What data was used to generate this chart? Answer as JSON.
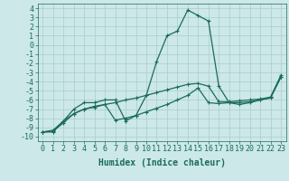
{
  "xlabel": "Humidex (Indice chaleur)",
  "background_color": "#cce8e8",
  "grid_color": "#aacccc",
  "line_color": "#1a6b5a",
  "xlim": [
    -0.5,
    23.5
  ],
  "ylim": [
    -10.5,
    4.5
  ],
  "xticks": [
    0,
    1,
    2,
    3,
    4,
    5,
    6,
    7,
    8,
    9,
    10,
    11,
    12,
    13,
    14,
    15,
    16,
    17,
    18,
    19,
    20,
    21,
    22,
    23
  ],
  "yticks": [
    4,
    3,
    2,
    1,
    0,
    -1,
    -2,
    -3,
    -4,
    -5,
    -6,
    -7,
    -8,
    -9,
    -10
  ],
  "line1_x": [
    0,
    1,
    2,
    3,
    4,
    5,
    6,
    7,
    8,
    9,
    10,
    11,
    12,
    13,
    14,
    15,
    16,
    17,
    18,
    19,
    20,
    21,
    22,
    23
  ],
  "line1_y": [
    -9.5,
    -9.5,
    -8.3,
    -7.0,
    -6.3,
    -6.3,
    -6.0,
    -6.0,
    -8.3,
    -7.7,
    -5.5,
    -1.8,
    1.0,
    1.5,
    3.8,
    3.2,
    2.6,
    -4.5,
    -6.3,
    -6.5,
    -6.3,
    -6.0,
    -5.7,
    -3.3
  ],
  "line2_x": [
    0,
    1,
    2,
    3,
    4,
    5,
    6,
    7,
    8,
    9,
    10,
    11,
    12,
    13,
    14,
    15,
    16,
    17,
    18,
    19,
    20,
    21,
    22,
    23
  ],
  "line2_y": [
    -9.5,
    -9.4,
    -8.5,
    -7.5,
    -7.0,
    -6.7,
    -6.5,
    -8.2,
    -8.0,
    -7.7,
    -7.3,
    -6.9,
    -6.5,
    -6.0,
    -5.5,
    -4.7,
    -6.3,
    -6.4,
    -6.3,
    -6.3,
    -6.2,
    -6.0,
    -5.8,
    -3.5
  ],
  "line3_x": [
    0,
    1,
    2,
    3,
    4,
    5,
    6,
    7,
    8,
    9,
    10,
    11,
    12,
    13,
    14,
    15,
    16,
    17,
    18,
    19,
    20,
    21,
    22,
    23
  ],
  "line3_y": [
    -9.5,
    -9.3,
    -8.3,
    -7.5,
    -7.0,
    -6.8,
    -6.5,
    -6.3,
    -6.0,
    -5.8,
    -5.5,
    -5.2,
    -4.9,
    -4.6,
    -4.3,
    -4.2,
    -4.5,
    -6.2,
    -6.2,
    -6.1,
    -6.0,
    -5.9,
    -5.7,
    -3.5
  ],
  "font_size": 6,
  "marker_size": 2.5,
  "lw": 0.9
}
